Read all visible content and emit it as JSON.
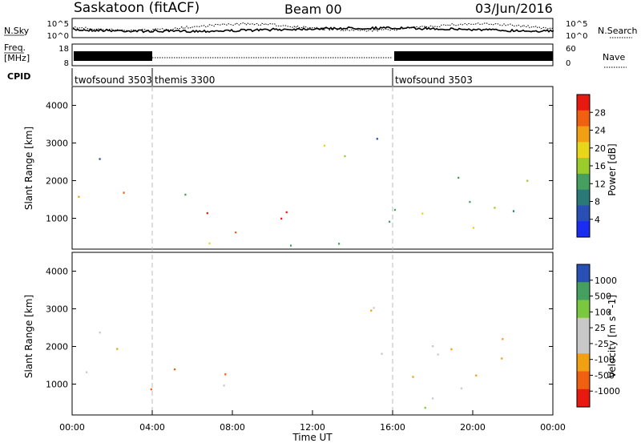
{
  "header": {
    "station": "Saskatoon (fitACF)",
    "beam": "Beam 00",
    "date": "03/Jun/2016"
  },
  "noise_panel": {
    "left_label": "N.Sky",
    "left_ticks": [
      "10^5",
      "10^0"
    ],
    "right_ticks": [
      "10^5",
      "10^0"
    ],
    "right_label": "N.Search"
  },
  "freq_panel": {
    "left_label_1": "Freq.",
    "left_label_2": "[MHz]",
    "left_ticks": [
      "18",
      "8"
    ],
    "right_ticks": [
      "60",
      "0"
    ],
    "right_label": "Nave"
  },
  "cpid_panel": {
    "label": "CPID",
    "segments": [
      {
        "name": "twofsound",
        "id": "3503",
        "start_hour": 0,
        "end_hour": 4
      },
      {
        "name": "themis",
        "id": "3300",
        "start_hour": 4,
        "end_hour": 16
      },
      {
        "name": "twofsound",
        "id": "3503",
        "start_hour": 16,
        "end_hour": 24
      }
    ]
  },
  "chart_data": [
    {
      "type": "heatmap",
      "title": "",
      "xlabel": "Time UT",
      "ylabel": "Slant Range [km]",
      "xlim_hours": [
        0,
        24
      ],
      "ylim": [
        180,
        4500
      ],
      "x_ticks": [
        "00:00",
        "04:00",
        "08:00",
        "12:00",
        "16:00",
        "20:00",
        "00:00"
      ],
      "y_ticks": [
        1000,
        2000,
        3000,
        4000
      ],
      "colorbar": {
        "label": "Power [dB]",
        "ticks": [
          "28",
          "24",
          "20",
          "16",
          "12",
          "8",
          "4"
        ],
        "range": [
          0,
          30
        ]
      },
      "colors": [
        "#1a2cf0",
        "#284fb4",
        "#2a7a78",
        "#45a060",
        "#9acc2c",
        "#e8d61a",
        "#f0a012",
        "#f06010",
        "#e81a10"
      ],
      "features": [
        {
          "t0": 0,
          "t1": 4,
          "r0": 1300,
          "r1": 2100,
          "level": 0.8
        },
        {
          "t0": 3.6,
          "t1": 10.8,
          "r0": 600,
          "r1": 1500,
          "level": 0.95
        },
        {
          "t0": 5.5,
          "t1": 9.5,
          "r0": 1400,
          "r1": 1700,
          "level": 0.6
        },
        {
          "t0": 0.5,
          "t1": 4,
          "r0": 2200,
          "r1": 2800,
          "level": 0.3
        },
        {
          "t0": 6,
          "t1": 9,
          "r0": 300,
          "r1": 700,
          "level": 0.45
        },
        {
          "t0": 12.5,
          "t1": 16,
          "r0": 1800,
          "r1": 3200,
          "level": 0.4
        },
        {
          "t0": 16,
          "t1": 24,
          "r0": 1100,
          "r1": 2400,
          "level": 0.35
        },
        {
          "t0": 15,
          "t1": 20,
          "r0": 400,
          "r1": 1000,
          "level": 0.55
        },
        {
          "t0": 4,
          "t1": 24,
          "r0": 180,
          "r1": 350,
          "level": 0.45
        }
      ]
    },
    {
      "type": "heatmap",
      "title": "",
      "xlabel": "Time UT",
      "ylabel": "Slant Range [km]",
      "xlim_hours": [
        0,
        24
      ],
      "ylim": [
        180,
        4500
      ],
      "x_ticks": [
        "00:00",
        "04:00",
        "08:00",
        "12:00",
        "16:00",
        "20:00",
        "00:00"
      ],
      "y_ticks": [
        1000,
        2000,
        3000,
        4000
      ],
      "colorbar": {
        "label": "Velocity [m s^-1]",
        "ticks": [
          "1000",
          "500",
          "100",
          "25",
          "-25",
          "-100",
          "-500",
          "-1000"
        ],
        "range": [
          -1000,
          1000
        ]
      },
      "colors": [
        "#e81a10",
        "#f06010",
        "#f0a012",
        "#c8c8c8",
        "#c8c8c8",
        "#7ac840",
        "#45a060",
        "#284fb4"
      ],
      "features": [
        {
          "t0": 0,
          "t1": 4,
          "r0": 1100,
          "r1": 2400,
          "velocity": 0
        },
        {
          "t0": 3.6,
          "t1": 6,
          "r0": 600,
          "r1": 1200,
          "velocity": -300
        },
        {
          "t0": 5,
          "t1": 11,
          "r0": 1200,
          "r1": 1600,
          "velocity": -150
        },
        {
          "t0": 5,
          "t1": 9,
          "r0": 900,
          "r1": 1100,
          "velocity": 110
        },
        {
          "t0": 12.5,
          "t1": 16,
          "r0": 1800,
          "r1": 3200,
          "velocity": 0
        },
        {
          "t0": 16,
          "t1": 24,
          "r0": 1100,
          "r1": 2400,
          "velocity": 0
        },
        {
          "t0": 15,
          "t1": 20,
          "r0": 400,
          "r1": 1000,
          "velocity": 0
        },
        {
          "t0": 14,
          "t1": 24,
          "r0": 180,
          "r1": 400,
          "velocity": 120
        }
      ]
    }
  ]
}
